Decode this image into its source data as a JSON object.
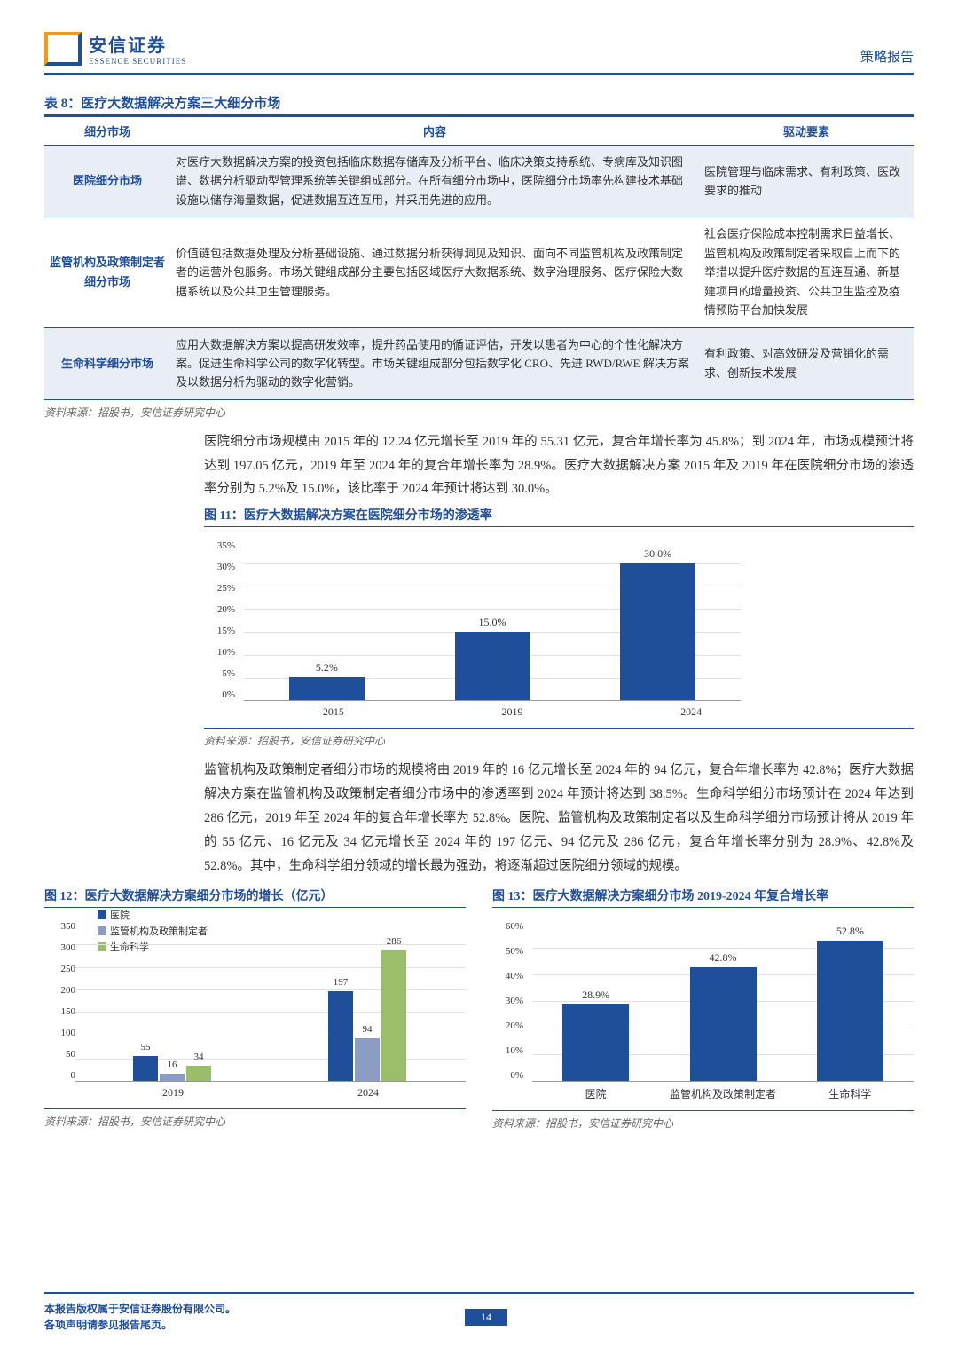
{
  "header": {
    "logo_cn": "安信证券",
    "logo_en": "ESSENCE SECURITIES",
    "right": "策略报告"
  },
  "table": {
    "title": "表 8：医疗大数据解决方案三大细分市场",
    "cols": [
      "细分市场",
      "内容",
      "驱动要素"
    ],
    "rows": [
      {
        "seg": "医院细分市场",
        "content": "对医疗大数据解决方案的投资包括临床数据存储库及分析平台、临床决策支持系统、专病库及知识图谱、数据分析驱动型管理系统等关键组成部分。在所有细分市场中，医院细分市场率先构建技术基础设施以储存海量数据，促进数据互连互用，并采用先进的应用。",
        "driver": "医院管理与临床需求、有利政策、医改要求的推动"
      },
      {
        "seg": "监管机构及政策制定者细分市场",
        "content": "价值链包括数据处理及分析基础设施、通过数据分析获得洞见及知识、面向不同监管机构及政策制定者的运营外包服务。市场关键组成部分主要包括区域医疗大数据系统、数字治理服务、医疗保险大数据系统以及公共卫生管理服务。",
        "driver": "社会医疗保险成本控制需求日益增长、监管机构及政策制定者采取自上而下的举措以提升医疗数据的互连互通、新基建项目的增量投资、公共卫生监控及疫情预防平台加快发展"
      },
      {
        "seg": "生命科学细分市场",
        "content": "应用大数据解决方案以提高研发效率，提升药品使用的循证评估，开发以患者为中心的个性化解决方案。促进生命科学公司的数字化转型。市场关键组成部分包括数字化 CRO、先进 RWD/RWE 解决方案及以数据分析为驱动的数字化营销。",
        "driver": "有利政策、对高效研发及营销化的需求、创新技术发展"
      }
    ],
    "source": "资料来源：招股书，安信证券研究中心"
  },
  "para1": "医院细分市场规模由 2015 年的 12.24 亿元增长至 2019 年的 55.31 亿元，复合年增长率为 45.8%；到 2024 年，市场规模预计将达到 197.05 亿元，2019 年至 2024 年的复合年增长率为 28.9%。医疗大数据解决方案 2015 年及 2019 年在医院细分市场的渗透率分别为 5.2%及 15.0%，该比率于 2024 年预计将达到 30.0%。",
  "fig11": {
    "title": "图 11：医疗大数据解决方案在医院细分市场的渗透率",
    "type": "bar",
    "yticks": [
      "35%",
      "30%",
      "25%",
      "20%",
      "15%",
      "10%",
      "5%",
      "0%"
    ],
    "ymax": 35,
    "categories": [
      "2015",
      "2019",
      "2024"
    ],
    "values": [
      5.2,
      15.0,
      30.0
    ],
    "labels": [
      "5.2%",
      "15.0%",
      "30.0%"
    ],
    "bar_color": "#1f4e9b",
    "source": "资料来源：招股书，安信证券研究中心"
  },
  "para2": "监管机构及政策制定者细分市场的规模将由 2019 年的 16 亿元增长至 2024 年的 94 亿元，复合年增长率为 42.8%；医疗大数据解决方案在监管机构及政策制定者细分市场中的渗透率到 2024 年预计将达到 38.5%。生命科学细分市场预计在 2024 年达到 286 亿元，2019 年至 2024 年的复合年增长率为 52.8%。",
  "para2u": "医院、监管机构及政策制定者以及生命科学细分市场预计将从 2019 年的 55 亿元、16 亿元及 34 亿元增长至 2024 年的 197 亿元、94 亿元及 286 亿元，复合年增长率分别为 28.9%、42.8%及 52.8%。",
  "para2b": "其中，生命科学细分领域的增长最为强劲，将逐渐超过医院细分领域的规模。",
  "fig12": {
    "title": "图 12：医疗大数据解决方案细分市场的增长（亿元）",
    "type": "grouped-bar",
    "yticks": [
      "350",
      "300",
      "250",
      "200",
      "150",
      "100",
      "50",
      "0"
    ],
    "ymax": 350,
    "legend": [
      {
        "label": "医院",
        "color": "#1f4e9b"
      },
      {
        "label": "监管机构及政策制定者",
        "color": "#8b9dc3"
      },
      {
        "label": "生命科学",
        "color": "#9bbe6a"
      }
    ],
    "categories": [
      "2019",
      "2024"
    ],
    "groups": [
      [
        55,
        16,
        34
      ],
      [
        197,
        94,
        286
      ]
    ],
    "source": "资料来源：招股书，安信证券研究中心"
  },
  "fig13": {
    "title": "图 13：医疗大数据解决方案细分市场 2019-2024 年复合增长率",
    "type": "bar",
    "yticks": [
      "60%",
      "50%",
      "40%",
      "30%",
      "20%",
      "10%",
      "0%"
    ],
    "ymax": 60,
    "categories": [
      "医院",
      "监管机构及政策制定者",
      "生命科学"
    ],
    "values": [
      28.9,
      42.8,
      52.8
    ],
    "labels": [
      "28.9%",
      "42.8%",
      "52.8%"
    ],
    "bar_color": "#1f4e9b",
    "source": "资料来源：招股书，安信证券研究中心"
  },
  "footer": {
    "l1": "本报告版权属于安信证券股份有限公司。",
    "l2": "各项声明请参见报告尾页。",
    "page": "14"
  }
}
